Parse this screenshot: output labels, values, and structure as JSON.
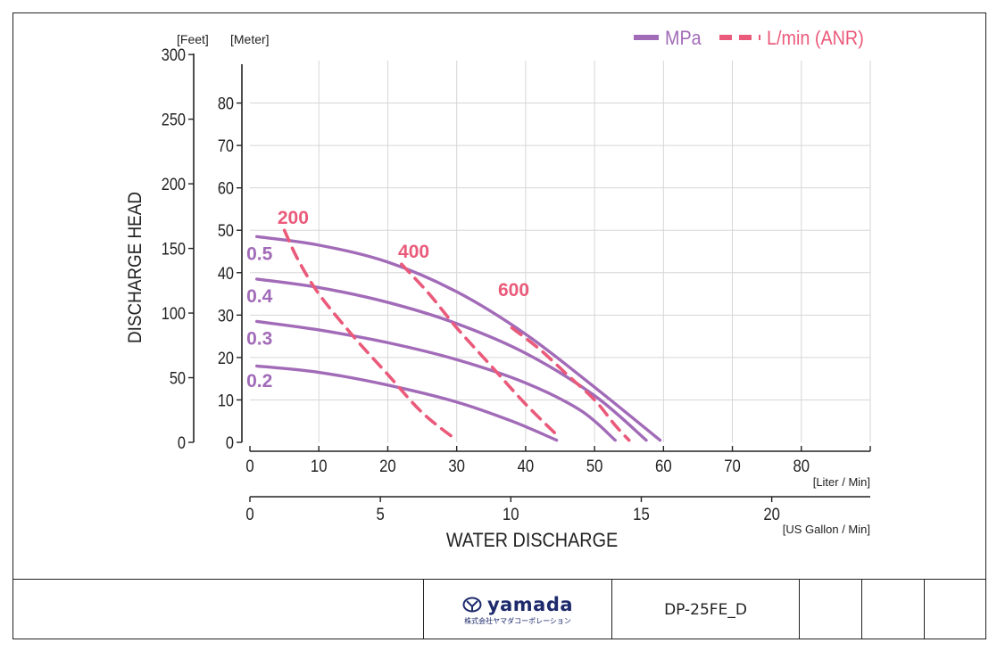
{
  "chart_data": {
    "type": "line",
    "xlabel": "WATER DISCHARGE",
    "ylabel": "DISCHARGE HEAD",
    "x_unit_primary": "[Liter / Min]",
    "x_unit_secondary": "[US Gallon / Min]",
    "y_unit_meter": "[Meter]",
    "y_unit_feet": "[Feet]",
    "xlim": [
      0,
      90
    ],
    "ylim": [
      0,
      90
    ],
    "x_ticks": [
      0,
      10,
      20,
      30,
      40,
      50,
      60,
      70,
      80
    ],
    "x_ticks_gal": [
      0,
      5,
      10,
      15,
      20
    ],
    "y_ticks_meter": [
      0,
      10,
      20,
      30,
      40,
      50,
      60,
      70,
      80
    ],
    "y_ticks_feet": [
      0,
      50,
      100,
      150,
      200,
      250,
      300
    ],
    "grid": true,
    "legend": {
      "position": "top-right",
      "items": [
        {
          "label": "MPa",
          "style": "solid",
          "color": "#a26bb8"
        },
        {
          "label": "L/min (ANR)",
          "style": "dashed",
          "color": "#ea5a7a"
        }
      ]
    },
    "series": [
      {
        "name": "0.5",
        "type": "MPa",
        "color": "#a26bb8",
        "points": [
          [
            1,
            48.5
          ],
          [
            10,
            46.5
          ],
          [
            20,
            42.5
          ],
          [
            30,
            35.5
          ],
          [
            40,
            25.5
          ],
          [
            50,
            13
          ],
          [
            59.5,
            0.5
          ]
        ]
      },
      {
        "name": "0.4",
        "type": "MPa",
        "color": "#a26bb8",
        "points": [
          [
            1,
            38.5
          ],
          [
            10,
            36.5
          ],
          [
            20,
            33
          ],
          [
            30,
            28
          ],
          [
            40,
            21
          ],
          [
            50,
            11
          ],
          [
            57.5,
            0.5
          ]
        ]
      },
      {
        "name": "0.3",
        "type": "MPa",
        "color": "#a26bb8",
        "points": [
          [
            1,
            28.5
          ],
          [
            10,
            26.5
          ],
          [
            20,
            23.5
          ],
          [
            30,
            19.5
          ],
          [
            40,
            14
          ],
          [
            48,
            7.5
          ],
          [
            53,
            0.5
          ]
        ]
      },
      {
        "name": "0.2",
        "type": "MPa",
        "color": "#a26bb8",
        "points": [
          [
            1,
            18
          ],
          [
            10,
            16.5
          ],
          [
            20,
            13.5
          ],
          [
            30,
            9.5
          ],
          [
            38,
            5
          ],
          [
            44.5,
            0.5
          ]
        ]
      },
      {
        "name": "200",
        "type": "L/min (ANR)",
        "color": "#ea5a7a",
        "points": [
          [
            5,
            50
          ],
          [
            7,
            43
          ],
          [
            10,
            35
          ],
          [
            15,
            25
          ],
          [
            20,
            16
          ],
          [
            25,
            7
          ],
          [
            30,
            0.5
          ]
        ]
      },
      {
        "name": "400",
        "type": "L/min (ANR)",
        "color": "#ea5a7a",
        "points": [
          [
            22,
            42
          ],
          [
            26,
            35
          ],
          [
            30,
            27
          ],
          [
            35,
            18
          ],
          [
            40,
            9
          ],
          [
            45,
            1
          ]
        ]
      },
      {
        "name": "600",
        "type": "L/min (ANR)",
        "color": "#ea5a7a",
        "points": [
          [
            38,
            27
          ],
          [
            42,
            22
          ],
          [
            46,
            16
          ],
          [
            50,
            10
          ],
          [
            53,
            4
          ],
          [
            55,
            0.5
          ]
        ]
      }
    ],
    "series_labels": [
      {
        "text": "0.5",
        "x": -0.5,
        "y": 43,
        "color": "#a26bb8"
      },
      {
        "text": "0.4",
        "x": -0.5,
        "y": 33,
        "color": "#a26bb8"
      },
      {
        "text": "0.3",
        "x": -0.5,
        "y": 23,
        "color": "#a26bb8"
      },
      {
        "text": "0.2",
        "x": -0.5,
        "y": 13,
        "color": "#a26bb8"
      },
      {
        "text": "200",
        "x": 4,
        "y": 51.5,
        "color": "#ea5a7a"
      },
      {
        "text": "400",
        "x": 21.5,
        "y": 43.5,
        "color": "#ea5a7a"
      },
      {
        "text": "600",
        "x": 36,
        "y": 34.5,
        "color": "#ea5a7a"
      }
    ]
  },
  "footer": {
    "logo_name": "yamada",
    "logo_sub": "株式会社ヤマダコーポレーション",
    "drawing_code": "DP-25FE_D"
  }
}
